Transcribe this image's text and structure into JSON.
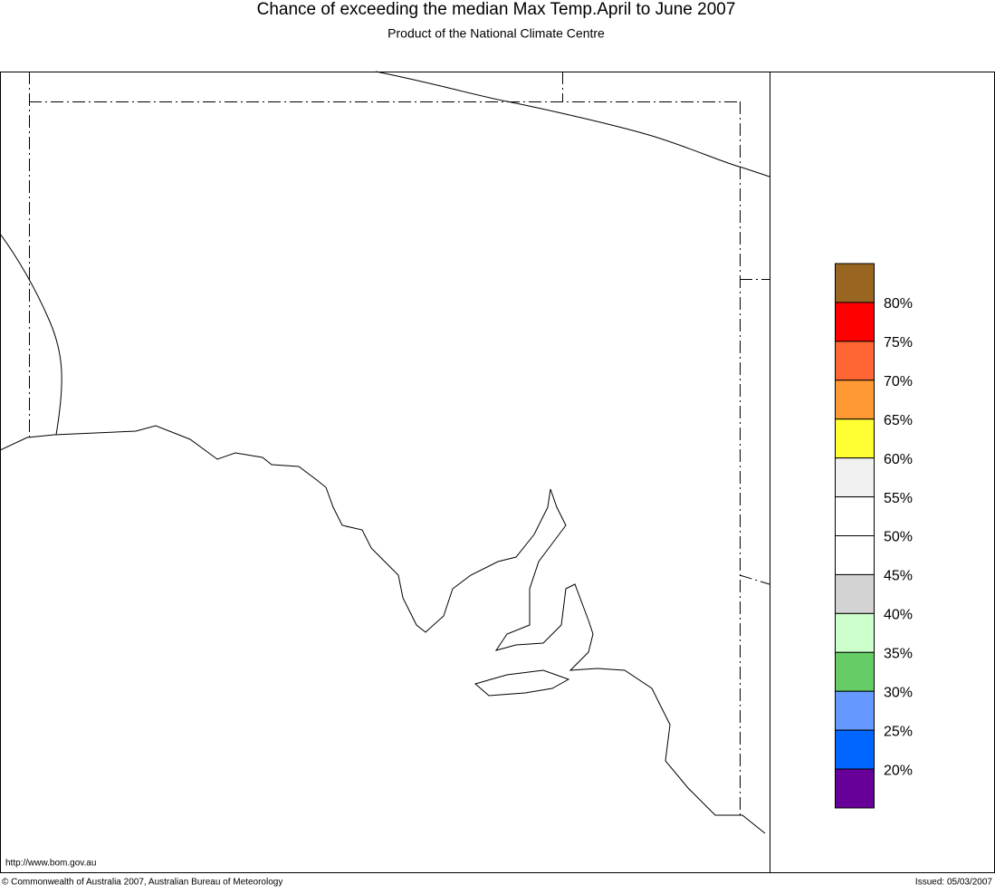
{
  "header": {
    "title": "Chance of exceeding the median Max Temp.April to June 2007",
    "subtitle": "Product of the National Climate Centre"
  },
  "legend": {
    "colors": [
      "#996622",
      "#ff0000",
      "#ff6633",
      "#ff9933",
      "#ffff33",
      "#f0f0f0",
      "#ffffff",
      "#ffffff",
      "#d3d3d3",
      "#ccffcc",
      "#66cc66",
      "#6699ff",
      "#0066ff",
      "#660099"
    ],
    "labels": [
      "80%",
      "75%",
      "70%",
      "65%",
      "60%",
      "55%",
      "50%",
      "45%",
      "40%",
      "35%",
      "30%",
      "25%",
      "20%"
    ]
  },
  "footer": {
    "url": "http://www.bom.gov.au",
    "copyright": "© Commonwealth of Australia 2007, Australian Bureau of Meteorology",
    "issued": "Issued: 05/03/2007"
  }
}
